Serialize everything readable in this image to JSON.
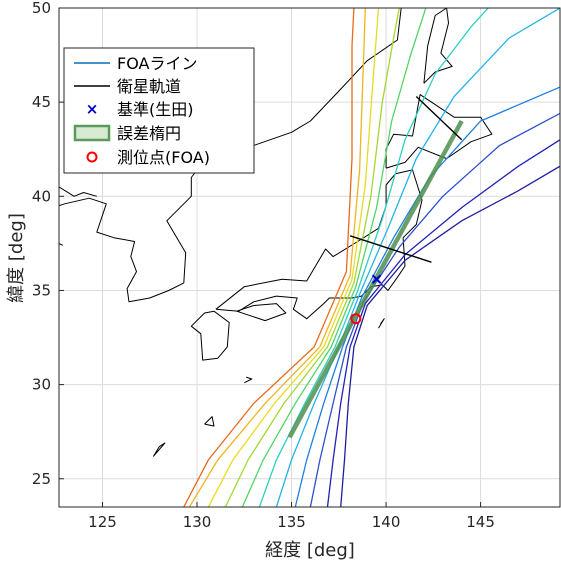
{
  "chart_data": {
    "type": "line",
    "xlabel": "経度 [deg]",
    "ylabel": "緯度 [deg]",
    "xlim": [
      122.7,
      149.2
    ],
    "ylim": [
      23.5,
      50
    ],
    "xticks": [
      125,
      130,
      135,
      140,
      145
    ],
    "yticks": [
      25,
      30,
      35,
      40,
      45,
      50
    ],
    "grid": true,
    "legend_position": "top-left",
    "legend": [
      {
        "label": "FOAライン",
        "kind": "line",
        "color": "#0072BD"
      },
      {
        "label": "衛星軌道",
        "kind": "line",
        "color": "#000000"
      },
      {
        "label": "基準(生田)",
        "kind": "marker-x",
        "color": "#0000CC"
      },
      {
        "label": "誤差楕円",
        "kind": "patch",
        "color": "#2E7D32"
      },
      {
        "label": "測位点(FOA)",
        "kind": "marker-o",
        "color": "#FF0000"
      }
    ],
    "foa_lines": [
      {
        "color": "#1f1f9c",
        "points": [
          [
            137.6,
            23.5
          ],
          [
            137.8,
            26
          ],
          [
            138.0,
            29
          ],
          [
            138.3,
            32
          ],
          [
            139.0,
            34.2
          ],
          [
            141,
            36.6
          ],
          [
            144,
            38.7
          ],
          [
            147,
            40.3
          ],
          [
            149.2,
            41.6
          ]
        ]
      },
      {
        "color": "#2222bb",
        "points": [
          [
            136.9,
            23.5
          ],
          [
            137.2,
            26
          ],
          [
            137.6,
            29
          ],
          [
            138.1,
            32
          ],
          [
            138.9,
            34.3
          ],
          [
            141,
            36.9
          ],
          [
            144,
            39.4
          ],
          [
            147,
            41.6
          ],
          [
            149.2,
            43.0
          ]
        ]
      },
      {
        "color": "#2d4fd0",
        "points": [
          [
            136.0,
            23.5
          ],
          [
            136.5,
            26
          ],
          [
            137.2,
            29
          ],
          [
            137.9,
            32
          ],
          [
            138.8,
            34.4
          ],
          [
            140.7,
            37.3
          ],
          [
            143,
            40
          ],
          [
            146,
            42.7
          ],
          [
            149.2,
            44.4
          ]
        ]
      },
      {
        "color": "#1e7fe0",
        "points": [
          [
            135.2,
            23.5
          ],
          [
            135.8,
            26
          ],
          [
            136.7,
            29
          ],
          [
            137.7,
            32
          ],
          [
            138.7,
            34.6
          ],
          [
            140.4,
            37.8
          ],
          [
            142.3,
            41
          ],
          [
            145,
            44
          ],
          [
            149.2,
            45.8
          ]
        ]
      },
      {
        "color": "#22b4e8",
        "points": [
          [
            134.2,
            23.5
          ],
          [
            135.0,
            26
          ],
          [
            136.2,
            29
          ],
          [
            137.5,
            32
          ],
          [
            138.6,
            34.8
          ],
          [
            140.1,
            38.3
          ],
          [
            141.6,
            42
          ],
          [
            143.6,
            45.3
          ],
          [
            146.5,
            48.4
          ],
          [
            149.2,
            50
          ]
        ]
      },
      {
        "color": "#2dd0c0",
        "points": [
          [
            133.3,
            23.5
          ],
          [
            134.2,
            26
          ],
          [
            135.7,
            29
          ],
          [
            137.3,
            32
          ],
          [
            138.5,
            35.0
          ],
          [
            139.8,
            38.8
          ],
          [
            141.0,
            43
          ],
          [
            142.6,
            46.5
          ],
          [
            144.5,
            49
          ],
          [
            145.4,
            50
          ]
        ]
      },
      {
        "color": "#52d466",
        "points": [
          [
            132.4,
            23.5
          ],
          [
            133.5,
            26
          ],
          [
            135.2,
            29
          ],
          [
            137.1,
            32
          ],
          [
            138.4,
            35.2
          ],
          [
            139.5,
            39.4
          ],
          [
            140.3,
            44
          ],
          [
            141.3,
            47.5
          ],
          [
            142.1,
            50
          ]
        ]
      },
      {
        "color": "#a4d832",
        "points": [
          [
            131.5,
            23.5
          ],
          [
            132.7,
            26
          ],
          [
            134.6,
            29
          ],
          [
            136.9,
            32
          ],
          [
            138.3,
            35.4
          ],
          [
            139.2,
            40
          ],
          [
            139.8,
            45
          ],
          [
            140.4,
            48.4
          ],
          [
            140.7,
            50
          ]
        ]
      },
      {
        "color": "#e8dc22",
        "points": [
          [
            130.6,
            23.5
          ],
          [
            131.9,
            26
          ],
          [
            134.1,
            29
          ],
          [
            136.7,
            32
          ],
          [
            138.2,
            35.6
          ],
          [
            138.9,
            40.6
          ],
          [
            139.3,
            46
          ],
          [
            139.6,
            50
          ]
        ]
      },
      {
        "color": "#f0b41e",
        "points": [
          [
            129.6,
            23.5
          ],
          [
            131.1,
            26
          ],
          [
            133.6,
            29
          ],
          [
            136.5,
            32
          ],
          [
            138.1,
            35.8
          ],
          [
            138.6,
            41.4
          ],
          [
            138.8,
            47
          ],
          [
            138.9,
            50
          ]
        ]
      },
      {
        "color": "#e86a1a",
        "points": [
          [
            129.3,
            23.5
          ],
          [
            130.6,
            26
          ],
          [
            133.0,
            29
          ],
          [
            136.2,
            32
          ],
          [
            137.9,
            36.0
          ],
          [
            138.2,
            42
          ],
          [
            138.2,
            48
          ],
          [
            138.3,
            50
          ]
        ]
      }
    ],
    "satellite_orbit": [
      {
        "points": [
          [
            141.6,
            45.3
          ],
          [
            144.0,
            43.0
          ]
        ]
      },
      {
        "points": [
          [
            138.1,
            37.9
          ],
          [
            142.4,
            36.5
          ]
        ]
      }
    ],
    "error_ellipse": {
      "points": [
        [
          134.9,
          27.2
        ],
        [
          144.0,
          44.0
        ]
      ],
      "color": "#4f8f4f"
    },
    "reference_point": {
      "lon": 139.5,
      "lat": 35.6
    },
    "foa_point": {
      "lon": 138.4,
      "lat": 33.5
    },
    "coastlines": [
      {
        "points": [
          [
            131.0,
            34.0
          ],
          [
            132.5,
            35.2
          ],
          [
            134.5,
            35.6
          ],
          [
            135.8,
            35.5
          ],
          [
            136.8,
            37.2
          ],
          [
            137.2,
            36.8
          ],
          [
            138.5,
            37.6
          ],
          [
            139.6,
            38.3
          ],
          [
            140.0,
            39.5
          ],
          [
            140.0,
            40.6
          ],
          [
            140.5,
            41.2
          ],
          [
            141.4,
            41.4
          ],
          [
            141.9,
            39.8
          ],
          [
            141.6,
            38.5
          ],
          [
            140.9,
            37.8
          ],
          [
            141.0,
            36.3
          ],
          [
            140.6,
            35.7
          ],
          [
            140.1,
            35.0
          ],
          [
            139.8,
            35.3
          ],
          [
            139.2,
            35.2
          ],
          [
            138.7,
            34.7
          ],
          [
            138.2,
            34.6
          ],
          [
            137.0,
            34.6
          ],
          [
            136.7,
            34.3
          ],
          [
            135.8,
            33.5
          ],
          [
            135.1,
            34.0
          ],
          [
            135.3,
            34.6
          ],
          [
            134.2,
            34.7
          ],
          [
            133.0,
            34.4
          ],
          [
            132.2,
            33.9
          ],
          [
            131.0,
            34.0
          ]
        ]
      },
      {
        "points": [
          [
            130.9,
            33.9
          ],
          [
            131.7,
            33.3
          ],
          [
            131.6,
            32.0
          ],
          [
            131.1,
            31.4
          ],
          [
            130.3,
            31.3
          ],
          [
            130.2,
            32.7
          ],
          [
            129.7,
            33.1
          ],
          [
            130.4,
            33.8
          ],
          [
            130.9,
            33.9
          ]
        ]
      },
      {
        "points": [
          [
            132.1,
            33.9
          ],
          [
            133.6,
            33.4
          ],
          [
            134.7,
            33.8
          ],
          [
            134.2,
            34.3
          ],
          [
            133.0,
            34.2
          ],
          [
            132.1,
            33.9
          ]
        ]
      },
      {
        "points": [
          [
            140.0,
            41.5
          ],
          [
            141.0,
            41.8
          ],
          [
            141.7,
            42.6
          ],
          [
            143.2,
            42.0
          ],
          [
            144.5,
            42.9
          ],
          [
            145.6,
            43.3
          ],
          [
            145.0,
            44.2
          ],
          [
            143.6,
            44.2
          ],
          [
            141.8,
            45.4
          ],
          [
            141.6,
            44.3
          ],
          [
            141.4,
            43.2
          ],
          [
            140.4,
            43.3
          ],
          [
            140.0,
            42.5
          ],
          [
            140.0,
            41.5
          ]
        ]
      },
      {
        "points": [
          [
            142.0,
            46.0
          ],
          [
            142.2,
            48.0
          ],
          [
            142.6,
            49.6
          ],
          [
            143.2,
            50
          ],
          [
            143.3,
            49.2
          ],
          [
            142.9,
            47.6
          ],
          [
            143.5,
            46.9
          ],
          [
            142.6,
            46.6
          ],
          [
            142.0,
            46.0
          ]
        ]
      },
      {
        "points": [
          [
            140.8,
            50
          ],
          [
            140.6,
            48.3
          ],
          [
            139.0,
            47.2
          ],
          [
            137.7,
            45.8
          ],
          [
            136.0,
            44.0
          ],
          [
            135.0,
            43.4
          ],
          [
            133.0,
            42.7
          ],
          [
            131.6,
            42.7
          ],
          [
            130.7,
            42.3
          ],
          [
            129.7,
            41.0
          ],
          [
            129.7,
            40.0
          ],
          [
            128.4,
            38.7
          ],
          [
            129.4,
            37.0
          ],
          [
            129.3,
            35.4
          ],
          [
            128.5,
            35.0
          ],
          [
            127.5,
            34.6
          ],
          [
            126.4,
            34.4
          ],
          [
            126.3,
            35.1
          ],
          [
            126.8,
            36.0
          ],
          [
            126.5,
            36.8
          ],
          [
            126.7,
            37.6
          ],
          [
            125.6,
            37.8
          ],
          [
            124.7,
            38.1
          ],
          [
            125.2,
            39.6
          ],
          [
            124.3,
            39.9
          ],
          [
            123.0,
            39.6
          ],
          [
            122.7,
            39.5
          ]
        ]
      },
      {
        "points": [
          [
            122.7,
            40.5
          ],
          [
            123.5,
            40.0
          ],
          [
            124.0,
            40.2
          ],
          [
            124.7,
            40.0
          ]
        ]
      },
      {
        "points": [
          [
            122.7,
            37.5
          ],
          [
            122.9,
            37.4
          ]
        ]
      },
      {
        "points": [
          [
            130.4,
            27.9
          ],
          [
            130.8,
            28.3
          ],
          [
            130.9,
            27.8
          ],
          [
            130.4,
            27.9
          ]
        ]
      },
      {
        "points": [
          [
            128.0,
            26.7
          ],
          [
            128.3,
            26.9
          ],
          [
            127.7,
            26.2
          ],
          [
            128.0,
            26.7
          ]
        ]
      },
      {
        "points": [
          [
            139.7,
            33.2
          ],
          [
            139.9,
            33.5
          ],
          [
            139.6,
            33.0
          ]
        ]
      },
      {
        "points": [
          [
            132.6,
            30.4
          ],
          [
            132.9,
            30.3
          ],
          [
            132.5,
            30.1
          ]
        ]
      }
    ]
  }
}
